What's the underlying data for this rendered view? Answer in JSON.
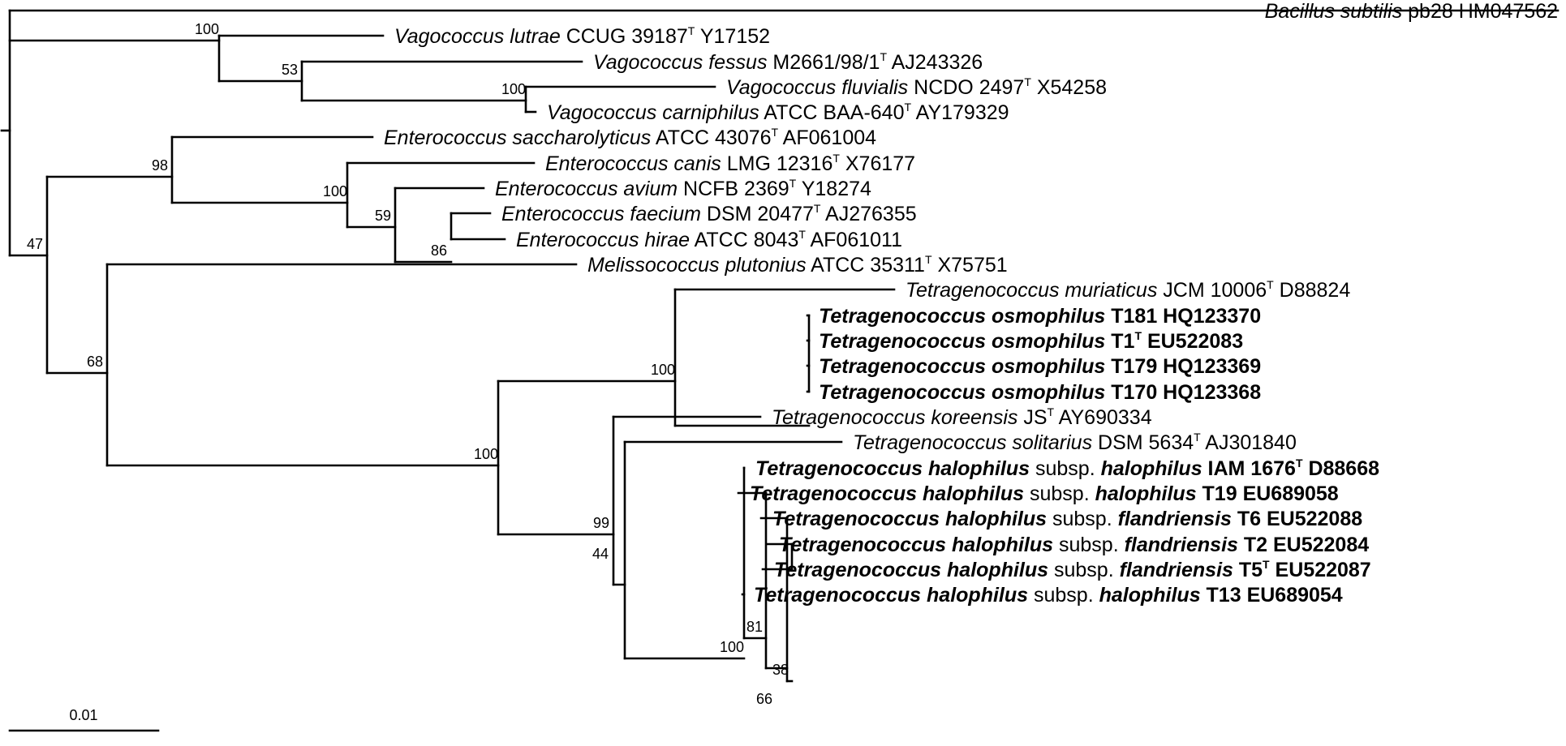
{
  "tree": {
    "scale_bar_label": "0.01",
    "leaves": [
      {
        "id": "bsub",
        "genus": "Bacillus subtilis",
        "rest": [
          {
            "t": " pb28 HM047562"
          }
        ],
        "bold": false
      },
      {
        "id": "vlut",
        "genus": "Vagococcus lutrae",
        "rest": [
          {
            "t": " CCUG 39187"
          },
          {
            "t": "T",
            "sup": true
          },
          {
            "t": " Y17152"
          }
        ],
        "bold": false
      },
      {
        "id": "vfes",
        "genus": "Vagococcus fessus",
        "rest": [
          {
            "t": " M2661/98/1"
          },
          {
            "t": "T",
            "sup": true
          },
          {
            "t": " AJ243326"
          }
        ],
        "bold": false
      },
      {
        "id": "vflu",
        "genus": "Vagococcus fluvialis",
        "rest": [
          {
            "t": " NCDO 2497"
          },
          {
            "t": "T",
            "sup": true
          },
          {
            "t": " X54258"
          }
        ],
        "bold": false
      },
      {
        "id": "vcar",
        "genus": "Vagococcus carniphilus",
        "rest": [
          {
            "t": " ATCC BAA-640"
          },
          {
            "t": "T",
            "sup": true
          },
          {
            "t": " AY179329"
          }
        ],
        "bold": false
      },
      {
        "id": "esac",
        "genus": "Enterococcus saccharolyticus",
        "rest": [
          {
            "t": " ATCC 43076"
          },
          {
            "t": "T",
            "sup": true
          },
          {
            "t": " AF061004"
          }
        ],
        "bold": false
      },
      {
        "id": "ecan",
        "genus": "Enterococcus canis",
        "rest": [
          {
            "t": " LMG 12316"
          },
          {
            "t": "T",
            "sup": true
          },
          {
            "t": " X76177"
          }
        ],
        "bold": false
      },
      {
        "id": "eavi",
        "genus": "Enterococcus avium",
        "rest": [
          {
            "t": " NCFB 2369"
          },
          {
            "t": "T",
            "sup": true
          },
          {
            "t": " Y18274"
          }
        ],
        "bold": false
      },
      {
        "id": "efae",
        "genus": "Enterococcus faecium",
        "rest": [
          {
            "t": " DSM 20477"
          },
          {
            "t": "T",
            "sup": true
          },
          {
            "t": " AJ276355"
          }
        ],
        "bold": false
      },
      {
        "id": "ehir",
        "genus": "Enterococcus hirae",
        "rest": [
          {
            "t": " ATCC 8043"
          },
          {
            "t": "T",
            "sup": true
          },
          {
            "t": " AF061011"
          }
        ],
        "bold": false
      },
      {
        "id": "mplu",
        "genus": "Melissococcus plutonius",
        "rest": [
          {
            "t": " ATCC 35311"
          },
          {
            "t": "T",
            "sup": true
          },
          {
            "t": " X75751"
          }
        ],
        "bold": false
      },
      {
        "id": "tmur",
        "genus": "Tetragenococcus muriaticus",
        "rest": [
          {
            "t": " JCM 10006"
          },
          {
            "t": "T",
            "sup": true
          },
          {
            "t": " D88824"
          }
        ],
        "bold": false
      },
      {
        "id": "tos1",
        "genus": "Tetragenococcus osmophilus",
        "rest": [
          {
            "t": " T181 HQ123370"
          }
        ],
        "bold": true
      },
      {
        "id": "tos2",
        "genus": "Tetragenococcus osmophilus",
        "rest": [
          {
            "t": " T1"
          },
          {
            "t": "T",
            "sup": true
          },
          {
            "t": " EU522083"
          }
        ],
        "bold": true
      },
      {
        "id": "tos3",
        "genus": "Tetragenococcus osmophilus",
        "rest": [
          {
            "t": " T179 HQ123369"
          }
        ],
        "bold": true
      },
      {
        "id": "tos4",
        "genus": "Tetragenococcus osmophilus",
        "rest": [
          {
            "t": " T170 HQ123368"
          }
        ],
        "bold": true
      },
      {
        "id": "tkor",
        "genus": "Tetragenococcus koreensis",
        "rest": [
          {
            "t": " JS"
          },
          {
            "t": "T",
            "sup": true
          },
          {
            "t": " AY690334"
          }
        ],
        "bold": false
      },
      {
        "id": "tsol",
        "genus": "Tetragenococcus solitarius",
        "rest": [
          {
            "t": " DSM 5634"
          },
          {
            "t": "T",
            "sup": true
          },
          {
            "t": " AJ301840"
          }
        ],
        "bold": false
      },
      {
        "id": "thh1",
        "genus": "Tetragenococcus halophilus",
        "rest": [
          {
            "t": " subsp. ",
            "plain": true
          },
          {
            "t": "halophilus",
            "italic": true
          },
          {
            "t": " IAM 1676"
          },
          {
            "t": "T",
            "sup": true
          },
          {
            "t": " D88668"
          }
        ],
        "bold": true
      },
      {
        "id": "thh2",
        "genus": "Tetragenococcus halophilus",
        "rest": [
          {
            "t": " subsp. ",
            "plain": true
          },
          {
            "t": "halophilus",
            "italic": true
          },
          {
            "t": " T19 EU689058"
          }
        ],
        "bold": true
      },
      {
        "id": "thf1",
        "genus": "Tetragenococcus halophilus",
        "rest": [
          {
            "t": " subsp. ",
            "plain": true
          },
          {
            "t": "flandriensis",
            "italic": true
          },
          {
            "t": " T6 EU522088"
          }
        ],
        "bold": true
      },
      {
        "id": "thf2",
        "genus": "Tetragenococcus halophilus",
        "rest": [
          {
            "t": " subsp. ",
            "plain": true
          },
          {
            "t": "flandriensis",
            "italic": true
          },
          {
            "t": " T2 EU522084"
          }
        ],
        "bold": true
      },
      {
        "id": "thf3",
        "genus": "Tetragenococcus halophilus",
        "rest": [
          {
            "t": " subsp. ",
            "plain": true
          },
          {
            "t": "flandriensis",
            "italic": true
          },
          {
            "t": " T5"
          },
          {
            "t": "T",
            "sup": true
          },
          {
            "t": " EU522087"
          }
        ],
        "bold": true
      },
      {
        "id": "thh3",
        "genus": "Tetragenococcus halophilus",
        "rest": [
          {
            "t": " subsp. ",
            "plain": true
          },
          {
            "t": "halophilus",
            "italic": true
          },
          {
            "t": " T13 EU689054"
          }
        ],
        "bold": true
      }
    ],
    "bootstrap_values": [
      "100",
      "53",
      "100",
      "98",
      "100",
      "59",
      "86",
      "47",
      "68",
      "100",
      "100",
      "99",
      "44",
      "100",
      "81",
      "38",
      "66"
    ]
  }
}
